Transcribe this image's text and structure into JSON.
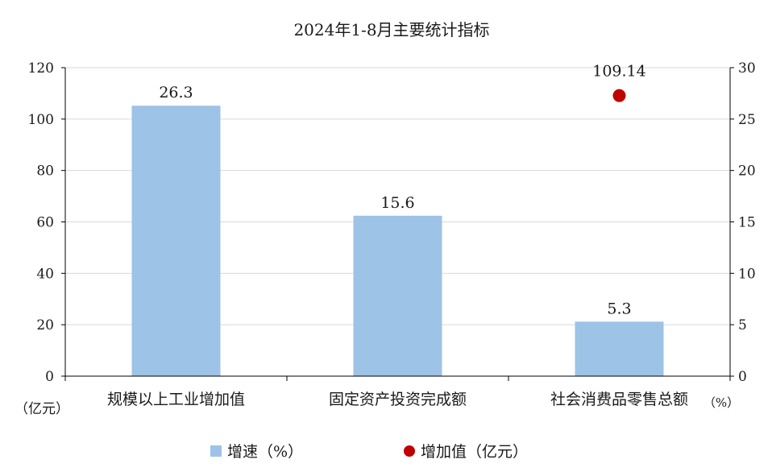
{
  "chart_data": {
    "type": "bar",
    "title": "2024年1-8月主要统计指标",
    "categories": [
      "规模以上工业增加值",
      "固定资产投资完成额",
      "社会消费品零售总额"
    ],
    "series": [
      {
        "name": "增速（%）",
        "axis": "right",
        "type": "bar",
        "color": "#9dc3e6",
        "values": [
          26.3,
          15.6,
          5.3
        ],
        "labels": [
          "26.3",
          "15.6",
          "5.3"
        ]
      },
      {
        "name": "增加值（亿元）",
        "axis": "left",
        "type": "scatter",
        "color": "#c00000",
        "values": [
          null,
          null,
          109.14
        ],
        "labels": [
          null,
          null,
          "109.14"
        ]
      }
    ],
    "left_axis": {
      "unit_label": "（亿元）",
      "ylim": [
        0,
        120
      ],
      "ticks": [
        0,
        20,
        40,
        60,
        80,
        100,
        120
      ]
    },
    "right_axis": {
      "unit_label": "（%）",
      "ylim": [
        0,
        30
      ],
      "ticks": [
        0,
        5,
        10,
        15,
        20,
        25,
        30
      ]
    },
    "grid": true,
    "legend_position": "bottom"
  }
}
